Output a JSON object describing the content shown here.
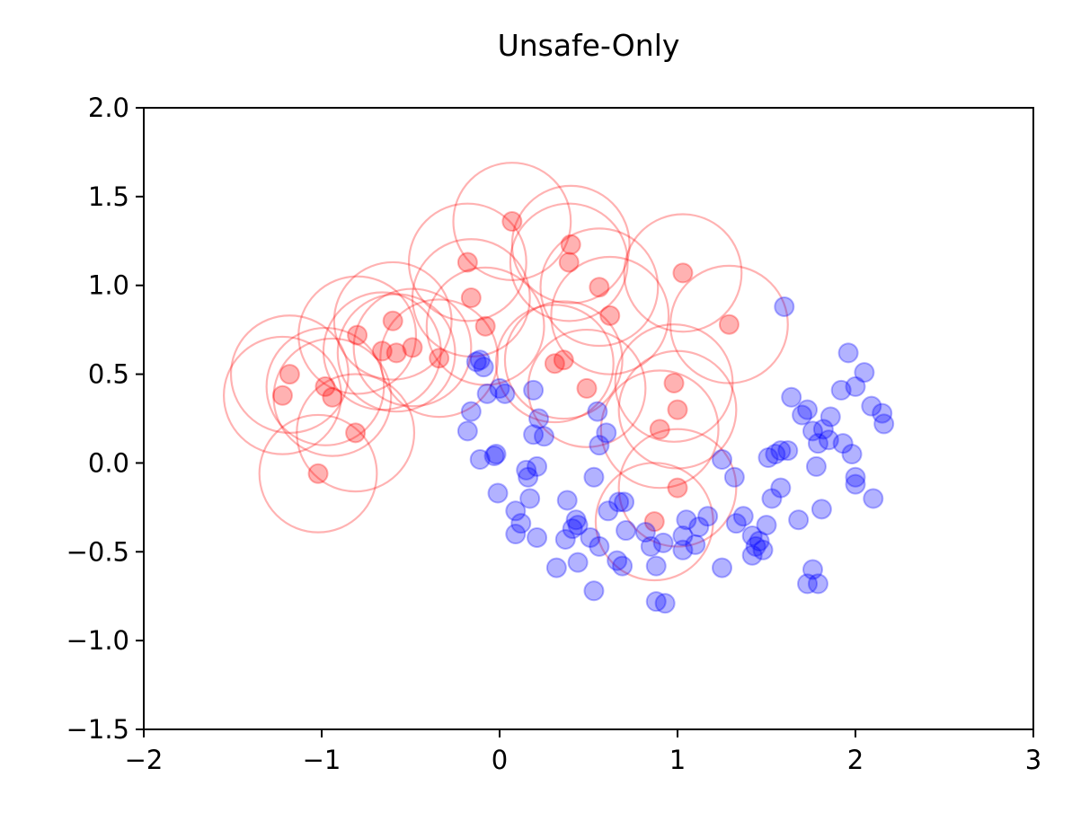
{
  "chart_data": {
    "type": "scatter",
    "title": "Unsafe-Only",
    "xlabel": "",
    "ylabel": "",
    "xlim": [
      -2,
      3
    ],
    "ylim": [
      -1.5,
      2.0
    ],
    "x_ticks": [
      -2,
      -1,
      0,
      1,
      2,
      3
    ],
    "x_tick_labels": [
      "−2",
      "−1",
      "0",
      "1",
      "2",
      "3"
    ],
    "y_ticks": [
      -1.5,
      -1.0,
      -0.5,
      0.0,
      0.5,
      1.0,
      1.5,
      2.0
    ],
    "y_tick_labels": [
      "−1.5",
      "−1.0",
      "−0.5",
      "0.0",
      "0.5",
      "1.0",
      "1.5",
      "2.0"
    ],
    "grid": false,
    "legend": "none",
    "series": [
      {
        "color": "#ff0000",
        "radius": 0.33,
        "points": [
          [
            0.07,
            1.36
          ],
          [
            0.4,
            1.23
          ],
          [
            0.39,
            1.13
          ],
          [
            -0.18,
            1.13
          ],
          [
            1.03,
            1.07
          ],
          [
            0.56,
            0.99
          ],
          [
            -0.16,
            0.93
          ],
          [
            0.62,
            0.83
          ],
          [
            -0.6,
            0.8
          ],
          [
            -0.08,
            0.77
          ],
          [
            1.29,
            0.78
          ],
          [
            -0.8,
            0.72
          ],
          [
            -0.66,
            0.63
          ],
          [
            -0.58,
            0.62
          ],
          [
            -0.49,
            0.65
          ],
          [
            -0.34,
            0.59
          ],
          [
            0.36,
            0.58
          ],
          [
            0.31,
            0.56
          ],
          [
            -1.18,
            0.5
          ],
          [
            -0.98,
            0.43
          ],
          [
            -0.94,
            0.37
          ],
          [
            -1.22,
            0.38
          ],
          [
            0.49,
            0.42
          ],
          [
            0.98,
            0.45
          ],
          [
            1.0,
            0.3
          ],
          [
            0.9,
            0.19
          ],
          [
            -0.81,
            0.17
          ],
          [
            -1.02,
            -0.06
          ],
          [
            1.0,
            -0.14
          ],
          [
            0.87,
            -0.33
          ]
        ]
      },
      {
        "color": "#0000ff",
        "radius": 0,
        "points": [
          [
            1.6,
            0.88
          ],
          [
            -0.11,
            0.58
          ],
          [
            -0.09,
            0.54
          ],
          [
            -0.13,
            0.57
          ],
          [
            0.0,
            0.42
          ],
          [
            0.03,
            0.39
          ],
          [
            -0.07,
            0.39
          ],
          [
            -0.16,
            0.29
          ],
          [
            0.19,
            0.41
          ],
          [
            0.22,
            0.25
          ],
          [
            -0.18,
            0.18
          ],
          [
            0.19,
            0.16
          ],
          [
            0.25,
            0.15
          ],
          [
            0.55,
            0.29
          ],
          [
            0.6,
            0.17
          ],
          [
            0.56,
            0.1
          ],
          [
            -0.11,
            0.02
          ],
          [
            -0.02,
            0.05
          ],
          [
            -0.03,
            0.04
          ],
          [
            0.15,
            -0.04
          ],
          [
            0.21,
            -0.02
          ],
          [
            0.16,
            -0.08
          ],
          [
            0.53,
            -0.08
          ],
          [
            1.25,
            0.02
          ],
          [
            1.32,
            -0.08
          ],
          [
            -0.01,
            -0.17
          ],
          [
            0.17,
            -0.2
          ],
          [
            0.09,
            -0.27
          ],
          [
            0.12,
            -0.34
          ],
          [
            0.09,
            -0.4
          ],
          [
            0.21,
            -0.42
          ],
          [
            0.38,
            -0.21
          ],
          [
            0.61,
            -0.27
          ],
          [
            0.67,
            -0.22
          ],
          [
            0.7,
            -0.22
          ],
          [
            0.43,
            -0.32
          ],
          [
            0.41,
            -0.37
          ],
          [
            0.37,
            -0.43
          ],
          [
            0.44,
            -0.35
          ],
          [
            0.51,
            -0.42
          ],
          [
            0.56,
            -0.47
          ],
          [
            0.32,
            -0.59
          ],
          [
            0.44,
            -0.56
          ],
          [
            0.66,
            -0.55
          ],
          [
            0.69,
            -0.58
          ],
          [
            0.53,
            -0.72
          ],
          [
            0.71,
            -0.38
          ],
          [
            0.82,
            -0.39
          ],
          [
            0.85,
            -0.47
          ],
          [
            0.88,
            -0.58
          ],
          [
            0.92,
            -0.45
          ],
          [
            1.03,
            -0.41
          ],
          [
            1.05,
            -0.32
          ],
          [
            1.12,
            -0.36
          ],
          [
            1.17,
            -0.3
          ],
          [
            1.1,
            -0.46
          ],
          [
            1.03,
            -0.49
          ],
          [
            1.25,
            -0.59
          ],
          [
            1.33,
            -0.34
          ],
          [
            1.37,
            -0.3
          ],
          [
            1.42,
            -0.41
          ],
          [
            1.46,
            -0.44
          ],
          [
            1.44,
            -0.47
          ],
          [
            1.48,
            -0.49
          ],
          [
            1.42,
            -0.52
          ],
          [
            1.5,
            -0.35
          ],
          [
            1.53,
            -0.2
          ],
          [
            1.58,
            -0.14
          ],
          [
            1.51,
            0.03
          ],
          [
            1.55,
            0.05
          ],
          [
            1.62,
            0.07
          ],
          [
            1.58,
            0.07
          ],
          [
            1.64,
            0.37
          ],
          [
            1.7,
            0.27
          ],
          [
            1.73,
            0.3
          ],
          [
            1.76,
            0.18
          ],
          [
            1.79,
            0.11
          ],
          [
            1.82,
            0.19
          ],
          [
            1.85,
            0.13
          ],
          [
            1.86,
            0.26
          ],
          [
            1.92,
            0.41
          ],
          [
            1.96,
            0.62
          ],
          [
            2.0,
            0.43
          ],
          [
            2.05,
            0.51
          ],
          [
            2.09,
            0.32
          ],
          [
            2.15,
            0.28
          ],
          [
            2.16,
            0.22
          ],
          [
            1.93,
            0.11
          ],
          [
            1.98,
            0.05
          ],
          [
            2.0,
            -0.08
          ],
          [
            2.0,
            -0.12
          ],
          [
            2.1,
            -0.2
          ],
          [
            1.78,
            -0.02
          ],
          [
            1.81,
            -0.26
          ],
          [
            1.68,
            -0.32
          ],
          [
            1.73,
            -0.68
          ],
          [
            1.76,
            -0.6
          ],
          [
            1.79,
            -0.68
          ],
          [
            0.88,
            -0.78
          ],
          [
            0.93,
            -0.79
          ]
        ]
      }
    ]
  }
}
